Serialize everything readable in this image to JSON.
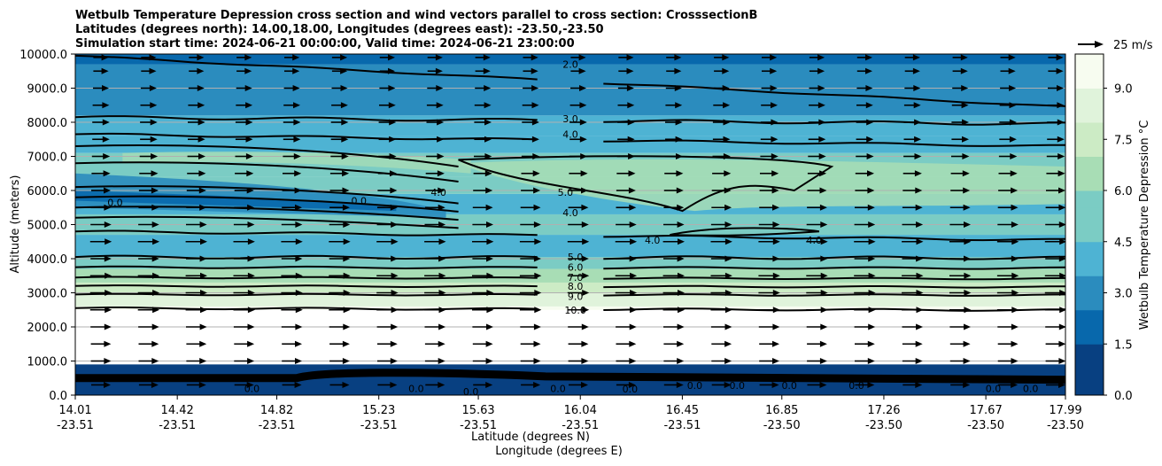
{
  "chart_data": {
    "type": "contour",
    "title_lines": [
      "Wetbulb Temperature Depression cross section and wind vectors parallel to cross section: CrosssectionB",
      "Latitudes (degrees north): 14.00,18.00, Longitudes (degrees east): -23.50,-23.50",
      "Simulation start time: 2024-06-21 00:00:00, Valid time: 2024-06-21 23:00:00"
    ],
    "xlabel_lat": "Latitude (degrees N)",
    "xlabel_lon": "Longitude (degrees E)",
    "ylabel": "Altitude (meters)",
    "ylim": [
      0,
      10000
    ],
    "xlim": [
      14.01,
      17.99
    ],
    "yticks": [
      0,
      1000,
      2000,
      3000,
      4000,
      5000,
      6000,
      7000,
      8000,
      9000,
      10000
    ],
    "ytick_labels": [
      "0.0",
      "1000.0",
      "2000.0",
      "3000.0",
      "4000.0",
      "5000.0",
      "6000.0",
      "7000.0",
      "8000.0",
      "9000.0",
      "10000.0"
    ],
    "xticks": [
      {
        "lat": "14.01",
        "lon": "-23.51",
        "value": 14.01
      },
      {
        "lat": "14.42",
        "lon": "-23.51",
        "value": 14.42
      },
      {
        "lat": "14.82",
        "lon": "-23.51",
        "value": 14.82
      },
      {
        "lat": "15.23",
        "lon": "-23.51",
        "value": 15.23
      },
      {
        "lat": "15.63",
        "lon": "-23.51",
        "value": 15.63
      },
      {
        "lat": "16.04",
        "lon": "-23.51",
        "value": 16.04
      },
      {
        "lat": "16.45",
        "lon": "-23.51",
        "value": 16.45
      },
      {
        "lat": "16.85",
        "lon": "-23.50",
        "value": 16.85
      },
      {
        "lat": "17.26",
        "lon": "-23.50",
        "value": 17.26
      },
      {
        "lat": "17.67",
        "lon": "-23.50",
        "value": 17.67
      },
      {
        "lat": "17.99",
        "lon": "-23.50",
        "value": 17.99
      }
    ],
    "colorbar": {
      "label": "Wetbulb Temperature Depression °C",
      "range": [
        0,
        10
      ],
      "ticks": [
        0,
        1.5,
        3,
        4.5,
        6,
        7.5,
        9
      ],
      "tick_labels": [
        "0.0",
        "1.5",
        "3.0",
        "4.5",
        "6.0",
        "7.5",
        "9.0"
      ],
      "colors": [
        "#084081",
        "#0868ac",
        "#2b8cbe",
        "#4eb3d3",
        "#7bccc4",
        "#a8ddb5",
        "#ccebc5",
        "#e0f3db",
        "#f7fcf0"
      ]
    },
    "quiver_key": {
      "label": "25 m/s",
      "speed": 25
    },
    "contour_levels": [
      {
        "value": 2.0,
        "label": "2.0",
        "label_x": 16.0,
        "label_alt": 9700
      },
      {
        "value": 3.0,
        "label": "3.0",
        "label_x": 16.0,
        "label_alt": 8100
      },
      {
        "value": 4.0,
        "label": "4.0",
        "label_x": 16.0,
        "label_alt": 7650
      },
      {
        "value": 5.0,
        "label": "5.0",
        "label_x": 15.98,
        "label_alt": 5950
      },
      {
        "value": 4.0,
        "label": "4.0",
        "label_x": 16.0,
        "label_alt": 5350
      },
      {
        "value": 5.0,
        "label": "5.0",
        "label_x": 16.02,
        "label_alt": 4050
      },
      {
        "value": 6.0,
        "label": "6.0",
        "label_x": 16.02,
        "label_alt": 3750
      },
      {
        "value": 7.0,
        "label": "7.0",
        "label_x": 16.02,
        "label_alt": 3450
      },
      {
        "value": 8.0,
        "label": "8.0",
        "label_x": 16.02,
        "label_alt": 3200
      },
      {
        "value": 9.0,
        "label": "9.0",
        "label_x": 16.02,
        "label_alt": 2900
      },
      {
        "value": 10.0,
        "label": "10.0",
        "label_x": 16.02,
        "label_alt": 2500
      }
    ],
    "extra_contour_labels": [
      {
        "text": "4.0",
        "x": 15.47,
        "alt": 5950
      },
      {
        "text": "4.0",
        "x": 16.33,
        "alt": 4550
      },
      {
        "text": "4.0",
        "x": 16.98,
        "alt": 4550
      },
      {
        "text": "0.0",
        "x": 14.17,
        "alt": 5650
      },
      {
        "text": "0.0",
        "x": 15.15,
        "alt": 5700
      },
      {
        "text": "10.0",
        "x": 15.95,
        "alt": 550
      },
      {
        "text": "0.0",
        "x": 14.72,
        "alt": 200
      },
      {
        "text": "0.0",
        "x": 15.38,
        "alt": 200
      },
      {
        "text": "0.0",
        "x": 15.6,
        "alt": 100
      },
      {
        "text": "0.0",
        "x": 15.95,
        "alt": 200
      },
      {
        "text": "0.0",
        "x": 16.24,
        "alt": 180
      },
      {
        "text": "0.0",
        "x": 16.5,
        "alt": 280
      },
      {
        "text": "0.0",
        "x": 16.67,
        "alt": 280
      },
      {
        "text": "0.0",
        "x": 16.88,
        "alt": 280
      },
      {
        "text": "0.0",
        "x": 17.15,
        "alt": 280
      },
      {
        "text": "0.0",
        "x": 17.7,
        "alt": 200
      },
      {
        "text": "0.0",
        "x": 17.85,
        "alt": 200
      }
    ],
    "wind_rows_alt": [
      300,
      1000,
      1500,
      2000,
      2500,
      3000,
      3500,
      4000,
      4500,
      5000,
      5500,
      6000,
      6500,
      7000,
      7500,
      8000,
      8500,
      9000,
      9500,
      9900
    ],
    "wind_speed_ms": [
      10,
      11,
      11,
      12,
      13,
      13,
      13,
      12,
      13,
      12,
      11,
      10,
      9,
      8,
      7,
      7,
      6,
      5,
      4,
      4
    ]
  }
}
